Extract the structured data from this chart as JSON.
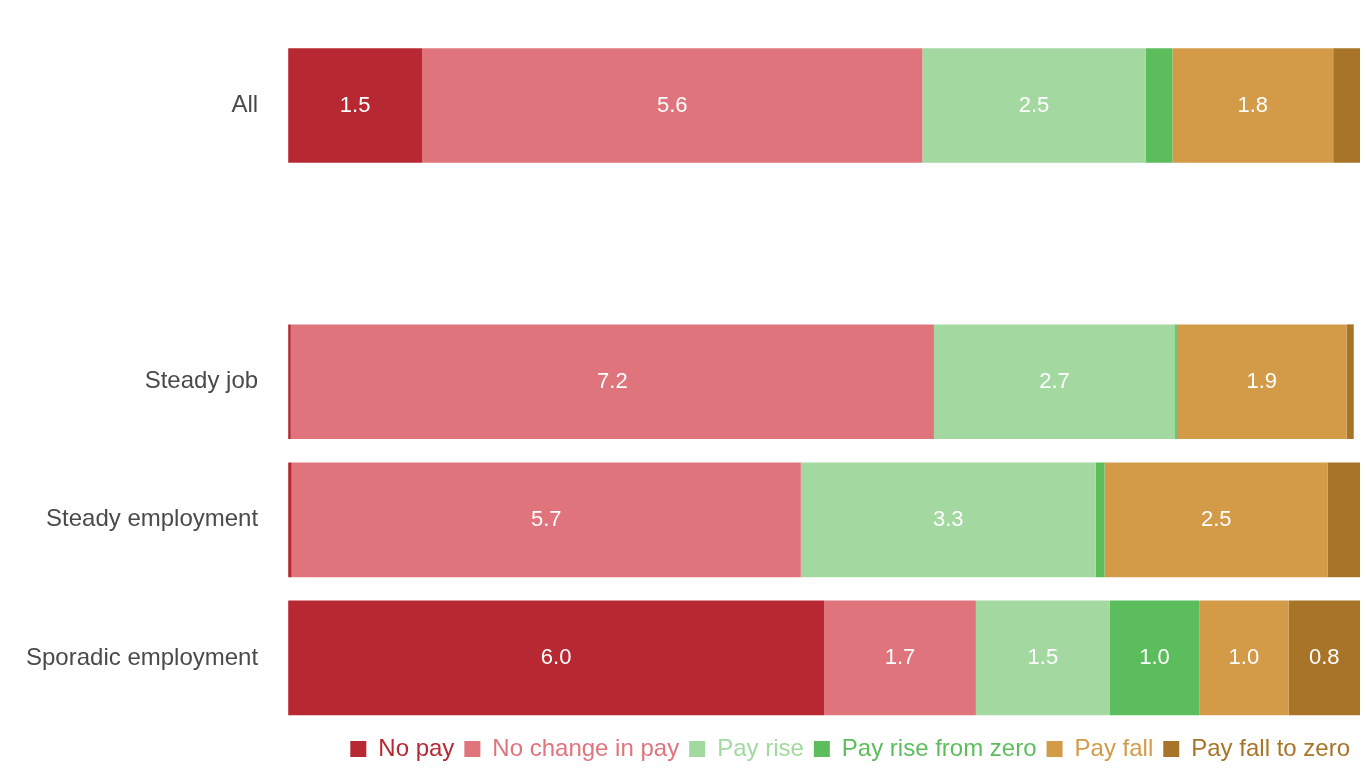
{
  "chart_data": {
    "type": "bar",
    "orientation": "horizontal",
    "stacked": true,
    "xlim": [
      0,
      12
    ],
    "tick_labels": "y",
    "legend": "bottom",
    "categories": [
      "All",
      null,
      "Steady job",
      "Steady employment",
      "Sporadic employment"
    ],
    "series": [
      {
        "name": "No pay",
        "color": "#b72832",
        "values": [
          1.5,
          null,
          0.03,
          0.04,
          6.0
        ],
        "value_labels": [
          "1.5",
          null,
          null,
          null,
          "6.0"
        ]
      },
      {
        "name": "No change in pay",
        "color": "#e0747c",
        "values": [
          5.6,
          null,
          7.2,
          5.7,
          1.7
        ],
        "value_labels": [
          "5.6",
          null,
          "7.2",
          "5.7",
          "1.7"
        ]
      },
      {
        "name": "Pay rise",
        "color": "#a3d9a0",
        "values": [
          2.5,
          null,
          2.7,
          3.3,
          1.5
        ],
        "value_labels": [
          "2.5",
          null,
          "2.7",
          "3.3",
          "1.5"
        ]
      },
      {
        "name": "Pay rise from zero",
        "color": "#5cbd5c",
        "values": [
          0.3,
          null,
          0.02,
          0.1,
          1.0
        ],
        "value_labels": [
          null,
          null,
          null,
          null,
          "1.0"
        ]
      },
      {
        "name": "Pay fall",
        "color": "#d39b48",
        "values": [
          1.8,
          null,
          1.9,
          2.5,
          1.0
        ],
        "value_labels": [
          "1.8",
          null,
          "1.9",
          "2.5",
          "1.0"
        ]
      },
      {
        "name": "Pay fall to zero",
        "color": "#a87428",
        "values": [
          0.3,
          null,
          0.08,
          0.4,
          0.8
        ],
        "value_labels": [
          null,
          null,
          null,
          null,
          "0.8"
        ]
      }
    ]
  }
}
